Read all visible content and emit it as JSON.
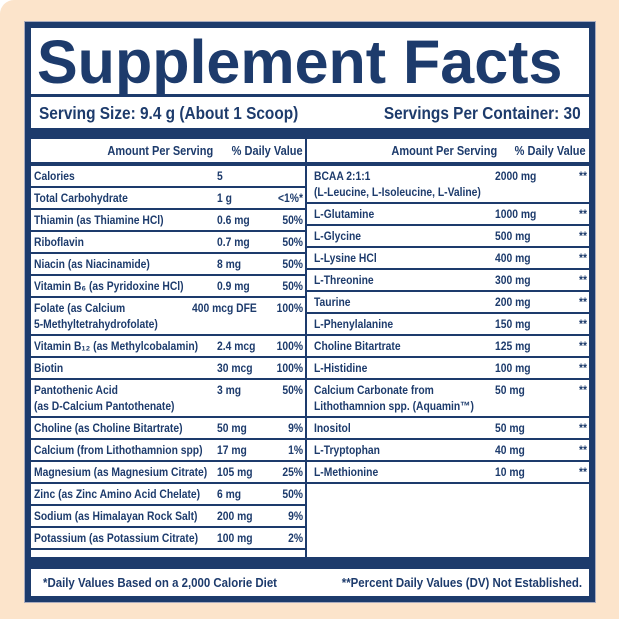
{
  "colors": {
    "navy": "#1d3b6c",
    "peach": "#fce4cb",
    "panel_background": "#ffffff"
  },
  "title": "Supplement Facts",
  "serving": {
    "size_label": "Serving Size: 9.4 g (About 1 Scoop)",
    "per_container_label": "Servings Per Container: 30"
  },
  "table": {
    "left": {
      "header": {
        "amount": "Amount Per Serving",
        "dv": "% Daily Value"
      },
      "rows": [
        {
          "name": "Calories",
          "amount": "5",
          "dv": ""
        },
        {
          "name": "Total Carbohydrate",
          "amount": "1 g",
          "dv": "<1%*"
        },
        {
          "name": "Thiamin (as Thiamine HCl)",
          "amount": "0.6 mg",
          "dv": "50%"
        },
        {
          "name": "Riboflavin",
          "amount": "0.7 mg",
          "dv": "50%"
        },
        {
          "name": "Niacin (as Niacinamide)",
          "amount": "8 mg",
          "dv": "50%"
        },
        {
          "name": "Vitamin B₆ (as Pyridoxine HCl)",
          "amount": "0.9 mg",
          "dv": "50%"
        },
        {
          "name": "Folate (as Calcium\n5-Methyltetrahydrofolate)",
          "amount": "400 mcg DFE",
          "dv": "100%"
        },
        {
          "name": "Vitamin B₁₂ (as Methylcobalamin)",
          "amount": "2.4 mcg",
          "dv": "100%"
        },
        {
          "name": "Biotin",
          "amount": "30 mcg",
          "dv": "100%"
        },
        {
          "name": "Pantothenic Acid\n(as D-Calcium Pantothenate)",
          "amount": "3 mg",
          "dv": "50%"
        },
        {
          "name": "Choline (as Choline Bitartrate)",
          "amount": "50 mg",
          "dv": "9%"
        },
        {
          "name": "Calcium (from Lithothamnion spp)",
          "amount": "17 mg",
          "dv": "1%"
        },
        {
          "name": "Magnesium (as Magnesium Citrate)",
          "amount": "105 mg",
          "dv": "25%"
        },
        {
          "name": "Zinc (as Zinc Amino Acid Chelate)",
          "amount": "6 mg",
          "dv": "50%"
        },
        {
          "name": "Sodium (as Himalayan Rock Salt)",
          "amount": "200 mg",
          "dv": "9%"
        },
        {
          "name": "Potassium (as Potassium Citrate)",
          "amount": "100 mg",
          "dv": "2%"
        }
      ]
    },
    "right": {
      "header": {
        "amount": "Amount Per Serving",
        "dv": "% Daily Value"
      },
      "rows": [
        {
          "name": "BCAA 2:1:1\n(L-Leucine, L-Isoleucine, L-Valine)",
          "amount": "2000 mg",
          "dv": "**"
        },
        {
          "name": "L-Glutamine",
          "amount": "1000 mg",
          "dv": "**"
        },
        {
          "name": "L-Glycine",
          "amount": "500 mg",
          "dv": "**"
        },
        {
          "name": "L-Lysine HCl",
          "amount": "400 mg",
          "dv": "**"
        },
        {
          "name": "L-Threonine",
          "amount": "300 mg",
          "dv": "**"
        },
        {
          "name": "Taurine",
          "amount": "200 mg",
          "dv": "**"
        },
        {
          "name": "L-Phenylalanine",
          "amount": "150 mg",
          "dv": "**"
        },
        {
          "name": "Choline Bitartrate",
          "amount": "125 mg",
          "dv": "**"
        },
        {
          "name": "L-Histidine",
          "amount": "100 mg",
          "dv": "**"
        },
        {
          "name": "Calcium Carbonate from\nLithothamnion spp. (Aquamin™)",
          "amount": "50 mg",
          "dv": "**"
        },
        {
          "name": "Inositol",
          "amount": "50 mg",
          "dv": "**"
        },
        {
          "name": "L-Tryptophan",
          "amount": "40 mg",
          "dv": "**"
        },
        {
          "name": "L-Methionine",
          "amount": "10 mg",
          "dv": "**"
        }
      ]
    }
  },
  "footnotes": {
    "daily_values": "*Daily Values Based on a 2,000 Calorie Diet",
    "not_established": "**Percent Daily Values (DV) Not Established."
  }
}
